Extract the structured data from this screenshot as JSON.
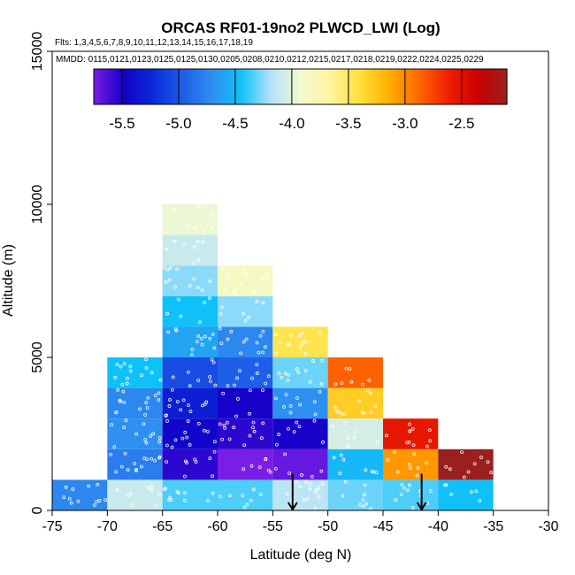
{
  "chart_data": {
    "type": "heatmap",
    "title": "ORCAS RF01-19no2 PLWCD_LWI (Log)",
    "flights_label": "Flts: 1,3,4,5,6,7,8,9,10,11,12,13,14,15,16,17,18,19",
    "mmdd_label": "MMDD: 0115,0121,0123,0125,0125,0130,0205,0208,0210,0212,0215,0217,0218,0219,0222,0224,0225,0229",
    "xlabel": "Latitude (deg N)",
    "ylabel": "Altitude (m)",
    "xlim": [
      -75,
      -30
    ],
    "ylim": [
      0,
      15000
    ],
    "x_ticks": [
      -75,
      -70,
      -65,
      -60,
      -55,
      -50,
      -45,
      -40,
      -35,
      -30
    ],
    "y_ticks": [
      0,
      5000,
      10000,
      15000
    ],
    "colorbar": {
      "range": [
        -5.75,
        -2.1
      ],
      "ticks": [
        -5.5,
        -5.0,
        -4.5,
        -4.0,
        -3.5,
        -3.0,
        -2.5
      ],
      "tick_labels": [
        "-5.5",
        "-5.0",
        "-4.5",
        "-4.0",
        "-3.5",
        "-3.0",
        "-2.5"
      ],
      "colors": [
        "#7a1ee6",
        "#1400c8",
        "#0a2ad8",
        "#1e5ce6",
        "#2f8ff0",
        "#10c2f8",
        "#b4e2fa",
        "#f2fad0",
        "#fff4a0",
        "#ffe03c",
        "#ffb000",
        "#ff6a00",
        "#f02000",
        "#cc0000",
        "#9a2020"
      ]
    },
    "bin_size": {
      "lat": 5,
      "alt": 1000
    },
    "cells": [
      {
        "lat": -75,
        "alt": 0,
        "value": -4.75
      },
      {
        "lat": -70,
        "alt": 0,
        "value": -4.1
      },
      {
        "lat": -65,
        "alt": 0,
        "value": -4.35
      },
      {
        "lat": -60,
        "alt": 0,
        "value": -4.35
      },
      {
        "lat": -55,
        "alt": 0,
        "value": -4.15
      },
      {
        "lat": -50,
        "alt": 0,
        "value": -4.3
      },
      {
        "lat": -45,
        "alt": 0,
        "value": -4.35
      },
      {
        "lat": -40,
        "alt": 0,
        "value": -4.45
      },
      {
        "lat": -70,
        "alt": 1000,
        "value": -4.8
      },
      {
        "lat": -65,
        "alt": 1000,
        "value": -5.55
      },
      {
        "lat": -60,
        "alt": 1000,
        "value": -5.75
      },
      {
        "lat": -55,
        "alt": 1000,
        "value": -5.7
      },
      {
        "lat": -50,
        "alt": 1000,
        "value": -4.5
      },
      {
        "lat": -45,
        "alt": 1000,
        "value": -3.05
      },
      {
        "lat": -40,
        "alt": 1000,
        "value": -2.1
      },
      {
        "lat": -70,
        "alt": 2000,
        "value": -4.7
      },
      {
        "lat": -65,
        "alt": 2000,
        "value": -5.45
      },
      {
        "lat": -60,
        "alt": 2000,
        "value": -5.55
      },
      {
        "lat": -55,
        "alt": 2000,
        "value": -5.5
      },
      {
        "lat": -50,
        "alt": 2000,
        "value": -4.05
      },
      {
        "lat": -45,
        "alt": 2000,
        "value": -2.55
      },
      {
        "lat": -70,
        "alt": 3000,
        "value": -4.75
      },
      {
        "lat": -65,
        "alt": 3000,
        "value": -5.3
      },
      {
        "lat": -60,
        "alt": 3000,
        "value": -5.5
      },
      {
        "lat": -55,
        "alt": 3000,
        "value": -4.7
      },
      {
        "lat": -50,
        "alt": 3000,
        "value": -3.3
      },
      {
        "lat": -70,
        "alt": 4000,
        "value": -4.45
      },
      {
        "lat": -65,
        "alt": 4000,
        "value": -5.05
      },
      {
        "lat": -60,
        "alt": 4000,
        "value": -4.95
      },
      {
        "lat": -55,
        "alt": 4000,
        "value": -4.3
      },
      {
        "lat": -50,
        "alt": 4000,
        "value": -2.85
      },
      {
        "lat": -65,
        "alt": 5000,
        "value": -4.6
      },
      {
        "lat": -60,
        "alt": 5000,
        "value": -4.75
      },
      {
        "lat": -55,
        "alt": 5000,
        "value": -3.45
      },
      {
        "lat": -65,
        "alt": 6000,
        "value": -4.45
      },
      {
        "lat": -60,
        "alt": 6000,
        "value": -4.25
      },
      {
        "lat": -65,
        "alt": 7000,
        "value": -4.25
      },
      {
        "lat": -60,
        "alt": 7000,
        "value": -3.85
      },
      {
        "lat": -65,
        "alt": 8000,
        "value": -4.1
      },
      {
        "lat": -65,
        "alt": 9000,
        "value": -3.95
      }
    ],
    "markers": [
      {
        "type": "down-arrow",
        "lat": -53.2,
        "alt": 500
      },
      {
        "type": "down-arrow",
        "lat": -41.5,
        "alt": 500
      }
    ]
  }
}
